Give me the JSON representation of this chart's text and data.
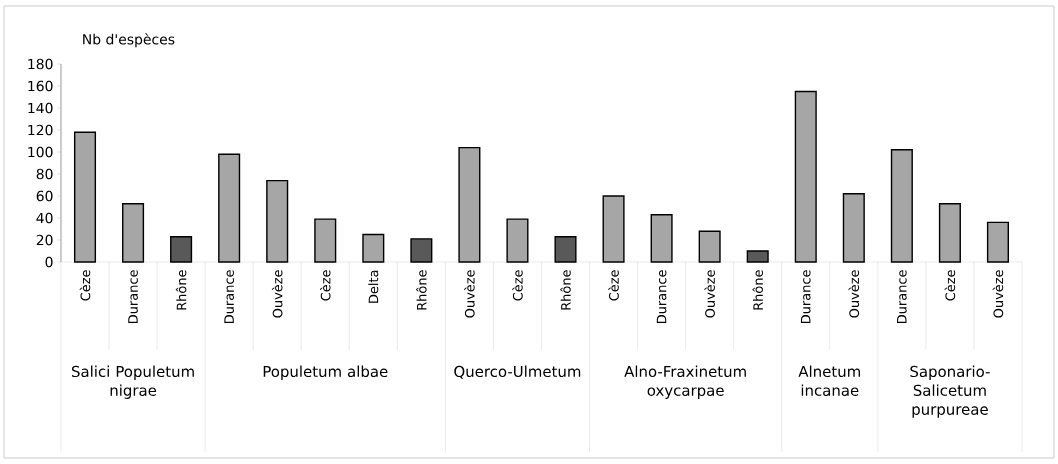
{
  "chart_data": {
    "type": "bar",
    "ylabel": "Nb d'espèces",
    "categories": [
      "Cèze",
      "Durance",
      "Rhône",
      "Durance",
      "Ouvèze",
      "Cèze",
      "Delta",
      "Rhône",
      "Ouvèze",
      "Cèze",
      "Rhône",
      "Cèze",
      "Durance",
      "Ouvèze",
      "Rhône",
      "Durance",
      "Ouvèze",
      "Durance",
      "Cèze",
      "Ouvèze"
    ],
    "values": [
      118,
      53,
      23,
      98,
      74,
      39,
      25,
      21,
      104,
      39,
      23,
      60,
      43,
      28,
      10,
      155,
      62,
      102,
      53,
      36
    ],
    "colors": [
      "#a6a6a6",
      "#a6a6a6",
      "#595959",
      "#a6a6a6",
      "#a6a6a6",
      "#a6a6a6",
      "#a6a6a6",
      "#595959",
      "#a6a6a6",
      "#a6a6a6",
      "#595959",
      "#a6a6a6",
      "#a6a6a6",
      "#a6a6a6",
      "#595959",
      "#a6a6a6",
      "#a6a6a6",
      "#a6a6a6",
      "#a6a6a6",
      "#a6a6a6"
    ],
    "ylim": [
      0,
      180
    ],
    "yticks": [
      0,
      20,
      40,
      60,
      80,
      100,
      120,
      140,
      160,
      180
    ],
    "grid": false,
    "annotations": [
      "Salici Populetum nigrae",
      "Populetum albae",
      "Querco-Ulmetum",
      "Alno-Fraxinetum oxycarpae",
      "Alnetum incanae",
      "Saponario-Salicetum purpureae"
    ]
  }
}
